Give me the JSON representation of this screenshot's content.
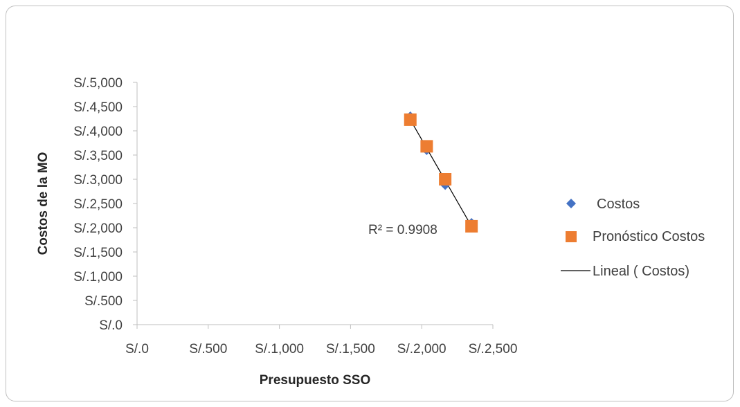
{
  "chart_data": {
    "type": "scatter",
    "title": "",
    "xlabel": "Presupuesto SSO",
    "ylabel": "Costos de la MO",
    "xlim": [
      0,
      2500
    ],
    "ylim": [
      0,
      5000
    ],
    "x_ticks": [
      0,
      500,
      1000,
      1500,
      2000,
      2500
    ],
    "y_ticks": [
      0,
      500,
      1000,
      1500,
      2000,
      2500,
      3000,
      3500,
      4000,
      4500,
      5000
    ],
    "x_tick_labels": [
      "S/.0",
      "S/.500",
      "S/.1,000",
      "S/.1,500",
      "S/.2,000",
      "S/.2,500"
    ],
    "y_tick_labels": [
      "S/.0",
      "S/.500",
      "S/.1,000",
      "S/.1,500",
      "S/.2,000",
      "S/.2,500",
      "S/.3,000",
      "S/.3,500",
      "S/.4,000",
      "S/.4,500",
      "S/.5,000"
    ],
    "grid": false,
    "legend_position": "right",
    "series": [
      {
        "name": "Costos",
        "marker": "diamond",
        "color": "#4472C4",
        "x": [
          1920,
          2035,
          2165,
          2350
        ],
        "y": [
          4300,
          3600,
          2880,
          2100
        ]
      },
      {
        "name": "Pronóstico  Costos",
        "marker": "square",
        "color": "#ED7D31",
        "x": [
          1920,
          2035,
          2165,
          2350
        ],
        "y": [
          4230,
          3680,
          3000,
          2030
        ]
      }
    ],
    "trendline": {
      "name": "Lineal ( Costos)",
      "type": "linear",
      "color": "#000000",
      "x": [
        1920,
        2350
      ],
      "y": [
        4230,
        2030
      ],
      "r_squared_label": "R² = 0.9908"
    }
  }
}
